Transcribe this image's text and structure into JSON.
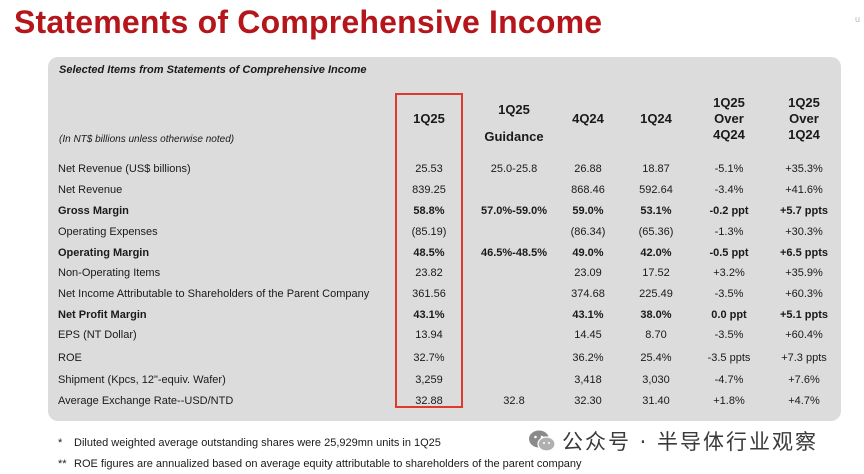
{
  "title": "Statements of Comprehensive Income",
  "corner_mark": "u",
  "subtitle": "Selected Items from Statements of Comprehensive Income",
  "units_note": "(In NT$ billions unless otherwise noted)",
  "headers": {
    "q125": "1Q25",
    "guidance": [
      "1Q25",
      "Guidance"
    ],
    "q424": "4Q24",
    "q124": "1Q24",
    "over_qoq": [
      "1Q25",
      "Over",
      "4Q24"
    ],
    "over_yoy": [
      "1Q25",
      "Over",
      "1Q24"
    ]
  },
  "rows": [
    {
      "label": "Net Revenue (US$ billions)",
      "bold": false,
      "q125": "25.53",
      "guidance": "25.0-25.8",
      "q424": "26.88",
      "q124": "18.87",
      "qoq": "-5.1%",
      "yoy": "+35.3%"
    },
    {
      "label": "Net Revenue",
      "bold": false,
      "q125": "839.25",
      "guidance": "",
      "q424": "868.46",
      "q124": "592.64",
      "qoq": "-3.4%",
      "yoy": "+41.6%"
    },
    {
      "label": "Gross Margin",
      "bold": true,
      "q125": "58.8%",
      "guidance": "57.0%-59.0%",
      "q424": "59.0%",
      "q124": "53.1%",
      "qoq": "-0.2 ppt",
      "yoy": "+5.7 ppts"
    },
    {
      "label": "Operating Expenses",
      "bold": false,
      "q125": "(85.19)",
      "guidance": "",
      "q424": "(86.34)",
      "q124": "(65.36)",
      "qoq": "-1.3%",
      "yoy": "+30.3%"
    },
    {
      "label": "Operating Margin",
      "bold": true,
      "q125": "48.5%",
      "guidance": "46.5%-48.5%",
      "q424": "49.0%",
      "q124": "42.0%",
      "qoq": "-0.5 ppt",
      "yoy": "+6.5 ppts"
    },
    {
      "label": "Non-Operating Items",
      "bold": false,
      "q125": "23.82",
      "guidance": "",
      "q424": "23.09",
      "q124": "17.52",
      "qoq": "+3.2%",
      "yoy": "+35.9%"
    },
    {
      "label": "Net Income Attributable to Shareholders of the Parent Company",
      "bold": false,
      "q125": "361.56",
      "guidance": "",
      "q424": "374.68",
      "q124": "225.49",
      "qoq": "-3.5%",
      "yoy": "+60.3%"
    },
    {
      "label": "Net Profit Margin",
      "bold": true,
      "q125": "43.1%",
      "guidance": "",
      "q424": "43.1%",
      "q124": "38.0%",
      "qoq": "0.0 ppt",
      "yoy": "+5.1 ppts"
    },
    {
      "label": "EPS (NT Dollar)",
      "bold": false,
      "q125": "13.94",
      "guidance": "",
      "q424": "14.45",
      "q124": "8.70",
      "qoq": "-3.5%",
      "yoy": "+60.4%"
    },
    {
      "label": "ROE",
      "bold": false,
      "q125": "32.7%",
      "guidance": "",
      "q424": "36.2%",
      "q124": "25.4%",
      "qoq": "-3.5 ppts",
      "yoy": "+7.3 ppts"
    },
    {
      "label": "Shipment (Kpcs, 12\"-equiv. Wafer)",
      "bold": false,
      "q125": "3,259",
      "guidance": "",
      "q424": "3,418",
      "q124": "3,030",
      "qoq": "-4.7%",
      "yoy": "+7.6%"
    },
    {
      "label": "Average Exchange Rate--USD/NTD",
      "bold": false,
      "q125": "32.88",
      "guidance": "32.8",
      "q424": "32.30",
      "q124": "31.40",
      "qoq": "+1.8%",
      "yoy": "+4.7%"
    }
  ],
  "footnotes": [
    {
      "mark": "*",
      "text": "Diluted weighted average outstanding shares were 25,929mn units in 1Q25"
    },
    {
      "mark": "**",
      "text": "ROE figures are annualized based on average equity attributable to shareholders of the parent company"
    }
  ],
  "watermark": "公众号 · 半导体行业观察",
  "watermark_icon": "wechat-icon",
  "colors": {
    "title": "#b5161b",
    "highlight": "#e03a2c",
    "panel": "#dcdcdc"
  }
}
